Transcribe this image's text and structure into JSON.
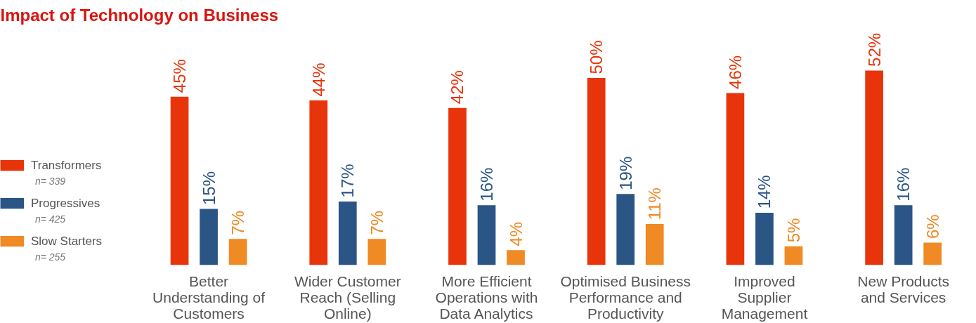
{
  "chart_data": {
    "type": "bar",
    "title": "Impact of Technology on Business",
    "categories": [
      "Better\nUnderstanding of\nCustomers",
      "Wider Customer\nReach (Selling\nOnline)",
      "More Efficient\nOperations with\nData Analytics",
      "Optimised Business\nPerformance and\nProductivity",
      "Improved\nSupplier\nManagement",
      "New Products\nand Services"
    ],
    "series": [
      {
        "name": "Transformers",
        "color": "#e8340a",
        "values": [
          45,
          44,
          42,
          50,
          46,
          52
        ],
        "value_labels": [
          "45%",
          "44%",
          "42%",
          "50%",
          "46%",
          "52%"
        ]
      },
      {
        "name": "Progressives",
        "color": "#2a5585",
        "values": [
          15,
          17,
          16,
          19,
          14,
          16
        ],
        "value_labels": [
          "15%",
          "17%",
          "16%",
          "19%",
          "14%",
          "16%"
        ]
      },
      {
        "name": "Slow Starters",
        "color": "#ef8a24",
        "values": [
          7,
          7,
          4,
          11,
          5,
          6
        ],
        "value_labels": [
          "7%",
          "7%",
          "4%",
          "11%",
          "5%",
          "6%"
        ]
      }
    ],
    "annotations": [
      "n= 339",
      "n= 425",
      "n= 255"
    ],
    "legend": "left",
    "tick_labels": "x",
    "grid": false
  }
}
